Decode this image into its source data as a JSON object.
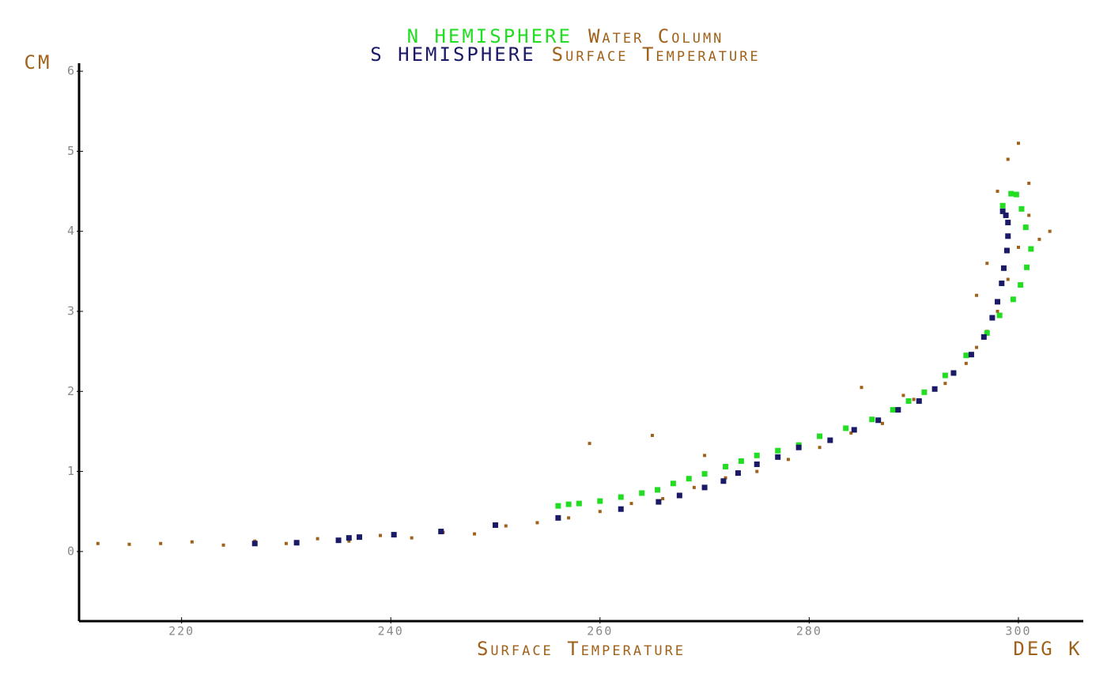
{
  "chart_data": {
    "type": "scatter",
    "title_lines": [
      "Water Column",
      "Surface Temperature"
    ],
    "y_unit": "CM",
    "x_label": "Surface Temperature",
    "x_unit": "DEG K",
    "label_color": "#a0621a",
    "xlim": [
      210.2,
      306.2
    ],
    "ylim": [
      -0.87,
      6.1
    ],
    "xticks": [
      220,
      240,
      260,
      280,
      300
    ],
    "yticks": [
      0,
      1,
      2,
      3,
      4,
      5,
      6
    ],
    "series": [
      {
        "name": "N HEMISPHERE",
        "color": "#22dd22",
        "x": [
          256,
          257,
          258,
          260,
          262,
          264,
          265.5,
          267,
          268.5,
          270,
          272,
          273.5,
          275,
          277,
          279,
          281,
          283.5,
          286,
          288,
          289.5,
          291,
          293,
          295,
          297,
          298.2,
          299.5,
          300.2,
          300.8,
          301.2,
          300.7,
          300.3,
          299.8,
          299.3,
          298.5
        ],
        "values": [
          0.57,
          0.59,
          0.6,
          0.63,
          0.68,
          0.73,
          0.77,
          0.85,
          0.91,
          0.97,
          1.06,
          1.13,
          1.2,
          1.26,
          1.33,
          1.44,
          1.54,
          1.65,
          1.77,
          1.88,
          1.99,
          2.2,
          2.45,
          2.73,
          2.95,
          3.15,
          3.33,
          3.55,
          3.78,
          4.05,
          4.28,
          4.46,
          4.47,
          4.32
        ]
      },
      {
        "name": "S HEMISPHERE",
        "color": "#1a1a66",
        "x": [
          227,
          231,
          235,
          236,
          237,
          240.3,
          244.8,
          250,
          256,
          262,
          265.6,
          267.6,
          270,
          271.8,
          273.2,
          275,
          277,
          279,
          282,
          284.3,
          286.6,
          288.5,
          290.5,
          292,
          293.8,
          295.5,
          296.7,
          297.5,
          298,
          298.4,
          298.6,
          298.9,
          299,
          299,
          298.8,
          298.5
        ],
        "values": [
          0.1,
          0.11,
          0.14,
          0.17,
          0.18,
          0.21,
          0.25,
          0.33,
          0.42,
          0.53,
          0.62,
          0.7,
          0.8,
          0.88,
          0.98,
          1.09,
          1.18,
          1.3,
          1.39,
          1.52,
          1.64,
          1.77,
          1.88,
          2.03,
          2.23,
          2.46,
          2.68,
          2.92,
          3.12,
          3.35,
          3.54,
          3.76,
          3.94,
          4.11,
          4.2,
          4.25
        ]
      },
      {
        "color": "#a0621a",
        "x": [
          212,
          215,
          218,
          221,
          224,
          227,
          230,
          233,
          236,
          239,
          242,
          245,
          248,
          251,
          254,
          257,
          260,
          263,
          266,
          269,
          272,
          275,
          278,
          281,
          284,
          287,
          290,
          293,
          295,
          296,
          297,
          298,
          299,
          300,
          301,
          302,
          298,
          299,
          300,
          301,
          297,
          303,
          296,
          259,
          265,
          270,
          285,
          289
        ],
        "values": [
          0.1,
          0.09,
          0.1,
          0.12,
          0.08,
          0.13,
          0.1,
          0.16,
          0.13,
          0.2,
          0.17,
          0.24,
          0.22,
          0.32,
          0.36,
          0.42,
          0.5,
          0.6,
          0.66,
          0.8,
          0.92,
          1.0,
          1.15,
          1.3,
          1.48,
          1.6,
          1.9,
          2.1,
          2.35,
          2.55,
          2.75,
          3.0,
          3.4,
          3.8,
          4.2,
          3.9,
          4.5,
          4.9,
          5.1,
          4.6,
          3.6,
          4.0,
          3.2,
          1.35,
          1.45,
          1.2,
          2.05,
          1.95
        ]
      }
    ]
  }
}
